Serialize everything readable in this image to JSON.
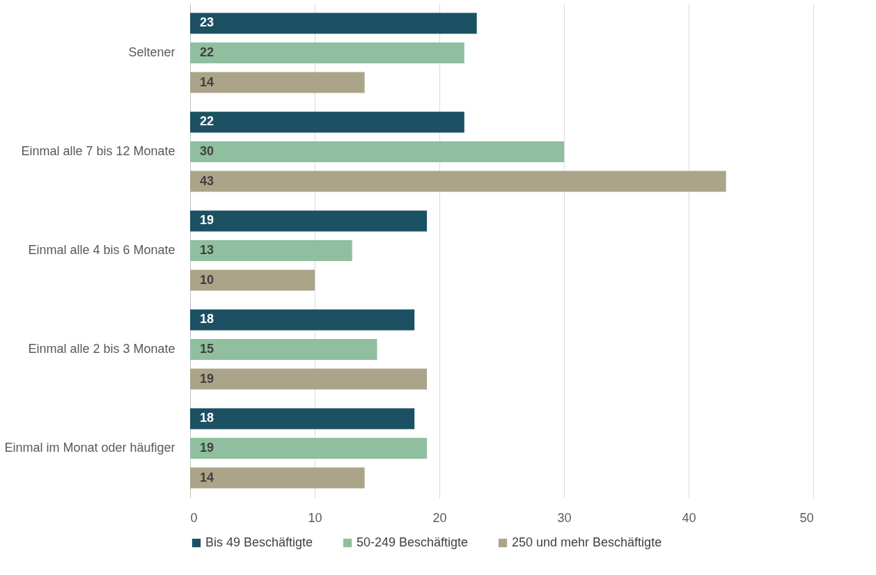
{
  "chart_data": {
    "type": "bar",
    "orientation": "horizontal",
    "categories": [
      "Seltener",
      "Einmal alle 7 bis 12 Monate",
      "Einmal alle 4 bis 6 Monate",
      "Einmal alle 2 bis 3 Monate",
      "Einmal im Monat oder häufiger"
    ],
    "series": [
      {
        "name": "Bis 49 Beschäftigte",
        "color": "#1b5163",
        "values": [
          23,
          22,
          19,
          18,
          18
        ]
      },
      {
        "name": "50-249 Beschäftigte",
        "color": "#8fbf9f",
        "values": [
          22,
          30,
          13,
          15,
          19
        ]
      },
      {
        "name": "250 und mehr Beschäftigte",
        "color": "#aca488",
        "values": [
          14,
          43,
          10,
          19,
          14
        ]
      }
    ],
    "xlim": [
      0,
      50
    ],
    "xticks": [
      0,
      10,
      20,
      30,
      40,
      50
    ],
    "grid": "x",
    "legend": "bottom",
    "data_labels": true
  }
}
